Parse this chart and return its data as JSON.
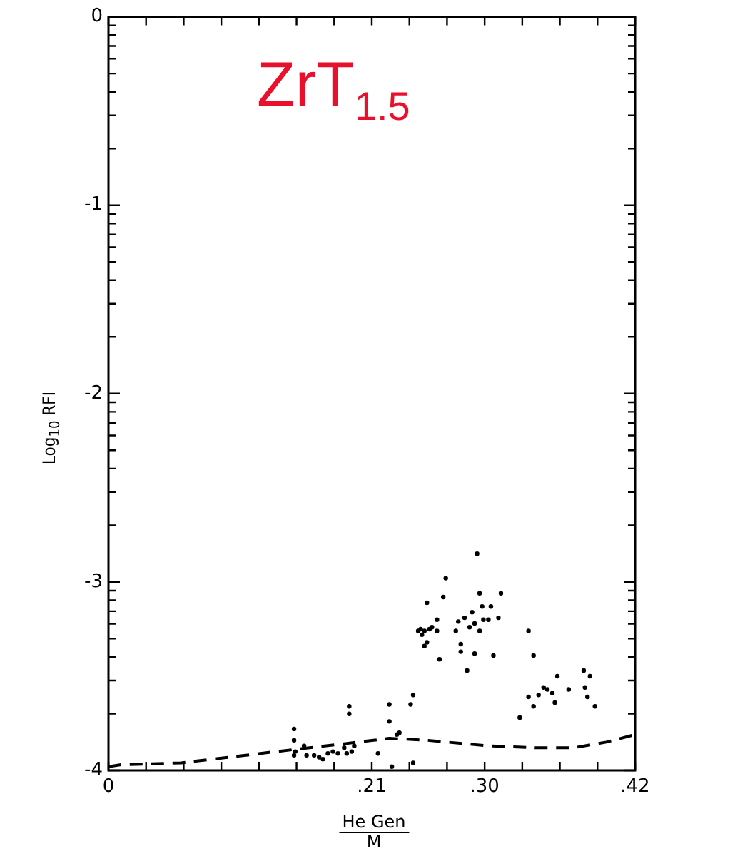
{
  "chart_data": {
    "type": "scatter",
    "title": "ZrT$_{1.5}$",
    "xlabel": "He Gen\nM",
    "ylabel": "Log$_{10}$ RFI",
    "xlim": [
      0,
      0.42
    ],
    "ylim": [
      -4,
      0
    ],
    "xticks": [
      0,
      {
        "value": 0.03,
        "label": null
      },
      {
        "value": 0.06,
        "label": null
      },
      {
        "value": 0.09,
        "label": null
      },
      {
        "value": 0.12,
        "label": null
      },
      {
        "value": 0.15,
        "label": null
      },
      {
        "value": 0.18,
        "label": null
      },
      {
        "value": 0.21,
        "label": ".21"
      },
      {
        "value": 0.24,
        "label": null
      },
      {
        "value": 0.27,
        "label": null
      },
      {
        "value": 0.3,
        "label": ".30"
      },
      {
        "value": 0.33,
        "label": null
      },
      {
        "value": 0.36,
        "label": null
      },
      {
        "value": 0.39,
        "label": null
      },
      {
        "value": 0.42,
        "label": ".42"
      }
    ],
    "yticks": [
      -4,
      {
        "value": -3.699,
        "label": null
      },
      {
        "value": -3.523,
        "label": null
      },
      {
        "value": -3.398,
        "label": null
      },
      {
        "value": -3.301,
        "label": null
      },
      {
        "value": -3.222,
        "label": null
      },
      {
        "value": -3.155,
        "label": null
      },
      {
        "value": -3.097,
        "label": null
      },
      {
        "value": -3.046,
        "label": null
      },
      -3,
      {
        "value": -2.699,
        "label": null
      },
      {
        "value": -2.523,
        "label": null
      },
      {
        "value": -2.398,
        "label": null
      },
      {
        "value": -2.301,
        "label": null
      },
      {
        "value": -2.222,
        "label": null
      },
      {
        "value": -2.155,
        "label": null
      },
      {
        "value": -2.097,
        "label": null
      },
      {
        "value": -2.046,
        "label": null
      },
      -2,
      {
        "value": -1.699,
        "label": null
      },
      {
        "value": -1.523,
        "label": null
      },
      {
        "value": -1.398,
        "label": null
      },
      {
        "value": -1.301,
        "label": null
      },
      {
        "value": -1.222,
        "label": null
      },
      {
        "value": -1.155,
        "label": null
      },
      {
        "value": -1.097,
        "label": null
      },
      {
        "value": -1.046,
        "label": null
      },
      -1,
      {
        "value": -0.699,
        "label": null
      },
      {
        "value": -0.523,
        "label": null
      },
      {
        "value": -0.398,
        "label": null
      },
      {
        "value": -0.301,
        "label": null
      },
      {
        "value": -0.222,
        "label": null
      },
      {
        "value": -0.155,
        "label": null
      },
      {
        "value": -0.097,
        "label": null
      },
      {
        "value": -0.046,
        "label": null
      },
      0
    ],
    "grid": false,
    "legend": false,
    "series": [
      {
        "type": "scatter",
        "color": "#000000",
        "marker": "circle",
        "x": [
          0.148,
          0.148,
          0.149,
          0.148,
          0.156,
          0.158,
          0.164,
          0.168,
          0.171,
          0.175,
          0.179,
          0.183,
          0.188,
          0.19,
          0.194,
          0.196,
          0.192,
          0.192,
          0.215,
          0.224,
          0.224,
          0.226,
          0.23,
          0.232,
          0.241,
          0.243,
          0.243,
          0.247,
          0.249,
          0.25,
          0.252,
          0.254,
          0.256,
          0.258,
          0.262,
          0.254,
          0.262,
          0.252,
          0.264,
          0.267,
          0.269,
          0.277,
          0.279,
          0.281,
          0.281,
          0.284,
          0.286,
          0.288,
          0.29,
          0.292,
          0.296,
          0.298,
          0.296,
          0.294,
          0.299,
          0.303,
          0.305,
          0.307,
          0.311,
          0.313,
          0.292,
          0.335,
          0.339,
          0.335,
          0.339,
          0.343,
          0.347,
          0.35,
          0.354,
          0.356,
          0.358,
          0.367,
          0.379,
          0.38,
          0.384,
          0.382,
          0.388,
          0.328
        ],
        "values": [
          -3.78,
          -3.84,
          -3.9,
          -3.92,
          -3.87,
          -3.92,
          -3.92,
          -3.93,
          -3.94,
          -3.91,
          -3.9,
          -3.91,
          -3.88,
          -3.91,
          -3.9,
          -3.87,
          -3.7,
          -3.66,
          -3.91,
          -3.65,
          -3.74,
          -3.98,
          -3.81,
          -3.8,
          -3.65,
          -3.6,
          -3.96,
          -3.26,
          -3.25,
          -3.28,
          -3.26,
          -3.32,
          -3.25,
          -3.24,
          -3.26,
          -3.11,
          -3.2,
          -3.34,
          -3.41,
          -3.08,
          -2.98,
          -3.26,
          -3.21,
          -3.33,
          -3.37,
          -3.19,
          -3.47,
          -3.24,
          -3.16,
          -3.22,
          -3.26,
          -3.13,
          -3.06,
          -2.85,
          -3.2,
          -3.2,
          -3.13,
          -3.39,
          -3.19,
          -3.06,
          -3.38,
          -3.26,
          -3.39,
          -3.61,
          -3.66,
          -3.6,
          -3.56,
          -3.57,
          -3.59,
          -3.64,
          -3.5,
          -3.57,
          -3.47,
          -3.56,
          -3.5,
          -3.61,
          -3.66,
          -3.72
        ]
      },
      {
        "type": "line",
        "color": "#000000",
        "marker": "none",
        "line_style": "dashed",
        "x": [
          0,
          0.01,
          0.058,
          0.134,
          0.186,
          0.224,
          0.254,
          0.303,
          0.341,
          0.371,
          0.397,
          0.42
        ],
        "values": [
          -3.98,
          -3.97,
          -3.96,
          -3.9,
          -3.86,
          -3.83,
          -3.84,
          -3.87,
          -3.88,
          -3.88,
          -3.85,
          -3.81
        ]
      }
    ]
  }
}
